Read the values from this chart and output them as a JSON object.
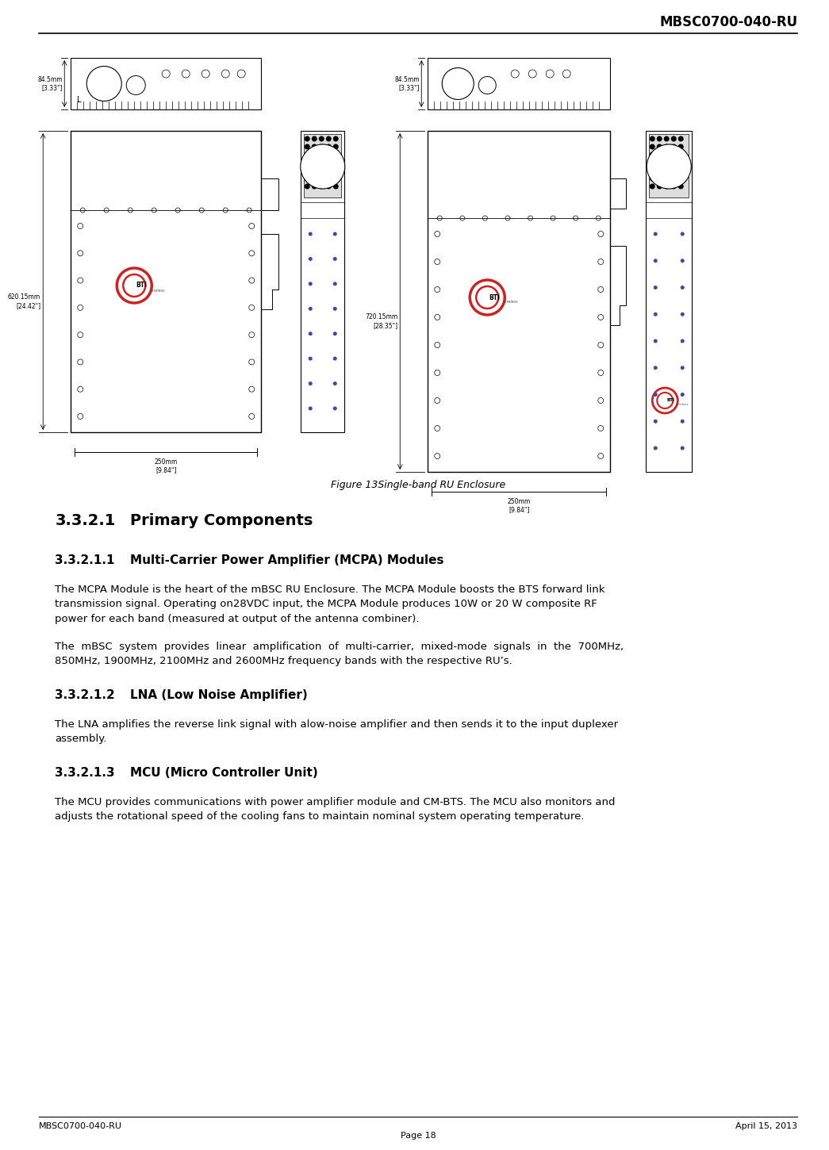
{
  "header_text": "MBSC0700-040-RU",
  "footer_left": "MBSC0700-040-RU",
  "footer_right": "April 15, 2013",
  "footer_center": "Page 18",
  "figure_caption": "Figure 13Single-band RU Enclosure",
  "s321_num": "3.3.2.1",
  "s321_title": "Primary Components",
  "s3211_num": "3.3.2.1.1",
  "s3211_title": "Multi-Carrier Power Amplifier (MCPA) Modules",
  "s3212_num": "3.3.2.1.2",
  "s3212_title": "LNA (Low Noise Amplifier)",
  "s3213_num": "3.3.2.1.3",
  "s3213_title": "MCU (Micro Controller Unit)",
  "p1": "The MCPA Module is the heart of the mBSC RU Enclosure. The MCPA Module boosts the BTS forward link\ntransmission signal. Operating on28VDC input, the MCPA Module produces 10W or 20 W composite RF\npower for each band (measured at output of the antenna combiner).",
  "p2": "The  mBSC  system  provides  linear  amplification  of  multi-carrier,  mixed-mode  signals  in  the  700MHz,\n850MHz, 1900MHz, 2100MHz and 2600MHz frequency bands with the respective RU’s.",
  "p3": "The LNA amplifies the reverse link signal with alow-noise amplifier and then sends it to the input duplexer\nassembly.",
  "p4": "The MCU provides communications with power amplifier module and CM-BTS. The MCU also monitors and\nadjusts the rotational speed of the cooling fans to maintain nominal system operating temperature.",
  "dim_left_h": "620.15mm\n[24.42\"]",
  "dim_right_h": "720.15mm\n[28.35\"]",
  "dim_left_top": "84.5mm\n[3.33\"]",
  "dim_right_top": "84.5mm\n[3.33\"]",
  "dim_w": "250mm\n[9.84\"]",
  "bti_color": "#cc2222"
}
